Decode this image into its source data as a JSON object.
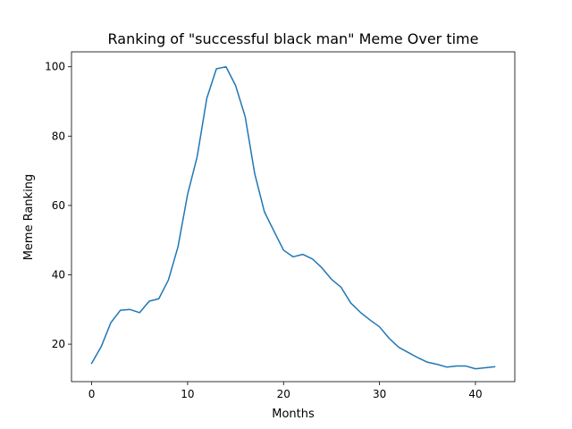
{
  "chart_data": {
    "type": "line",
    "title": "Ranking of \"successful black man\" Meme Over time",
    "xlabel": "Months",
    "ylabel": "Meme Ranking",
    "xlim": [
      -2.1,
      44.1
    ],
    "ylim": [
      9.2,
      104.3
    ],
    "xticks": [
      0,
      10,
      20,
      30,
      40
    ],
    "yticks": [
      20,
      40,
      60,
      80,
      100
    ],
    "grid": false,
    "series": [
      {
        "color": "#1f77b4",
        "x": [
          0,
          1,
          2,
          3,
          4,
          5,
          6,
          7,
          8,
          9,
          10,
          11,
          12,
          13,
          14,
          15,
          16,
          17,
          18,
          19,
          20,
          21,
          22,
          23,
          24,
          25,
          26,
          27,
          28,
          29,
          30,
          31,
          32,
          33,
          34,
          35,
          36,
          37,
          38,
          39,
          40,
          41,
          42
        ],
        "values": [
          14.5,
          19.3,
          26.2,
          29.8,
          30.0,
          29.1,
          32.4,
          33.1,
          38.5,
          48.1,
          63.2,
          74.1,
          90.9,
          99.4,
          100.0,
          94.6,
          85.6,
          69.1,
          58.2,
          52.6,
          47.1,
          45.2,
          45.9,
          44.6,
          42.0,
          38.7,
          36.4,
          31.9,
          29.2,
          27.0,
          25.0,
          21.7,
          19.1,
          17.6,
          16.1,
          14.8,
          14.2,
          13.4,
          13.7,
          13.7,
          12.9,
          13.2,
          13.5
        ]
      }
    ]
  }
}
